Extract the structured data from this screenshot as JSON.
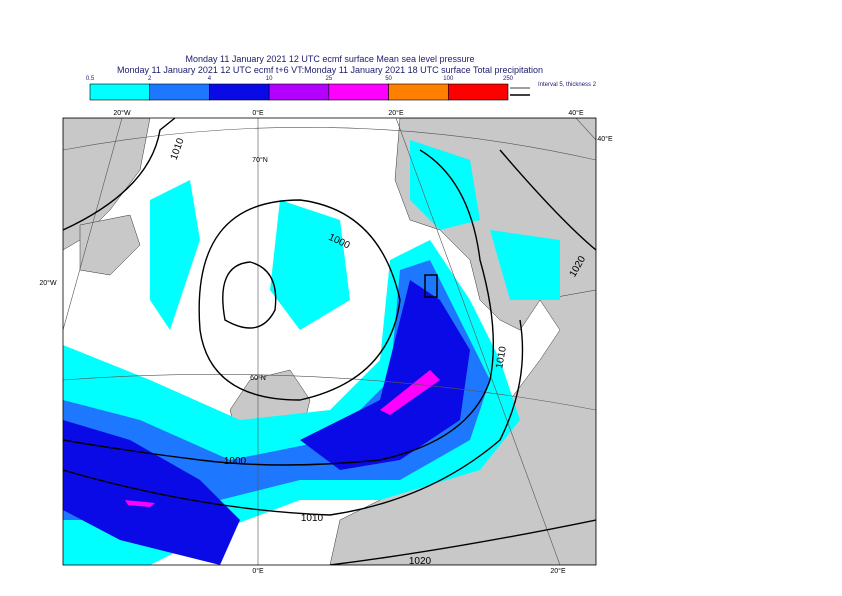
{
  "header": {
    "line1": "Monday 11 January 2021 12 UTC ecmf surface  Mean sea level pressure",
    "line2": "Monday 11 January 2021 12 UTC ecmf t+6 VT:Monday 11 January 2021 18 UTC surface  Total precipitation"
  },
  "legend": {
    "levels": [
      0.5,
      2,
      4,
      10,
      25,
      50,
      100,
      250
    ],
    "colors": [
      "#00ffff",
      "#1e78ff",
      "#0a0ae6",
      "#b400ff",
      "#ff00ff",
      "#ff8000",
      "#ff0000"
    ],
    "note": "Interval 5, thickness 2"
  },
  "map": {
    "lon_labels": [
      "20°W",
      "0°E",
      "20°E",
      "40°E",
      "40°E",
      "0°E",
      "20°E"
    ],
    "lat_labels": [
      "20°W",
      "70°N",
      "60°N"
    ],
    "isobar_labels": [
      "1010",
      "1000",
      "1020",
      "1010",
      "1000",
      "1010",
      "1020"
    ]
  }
}
